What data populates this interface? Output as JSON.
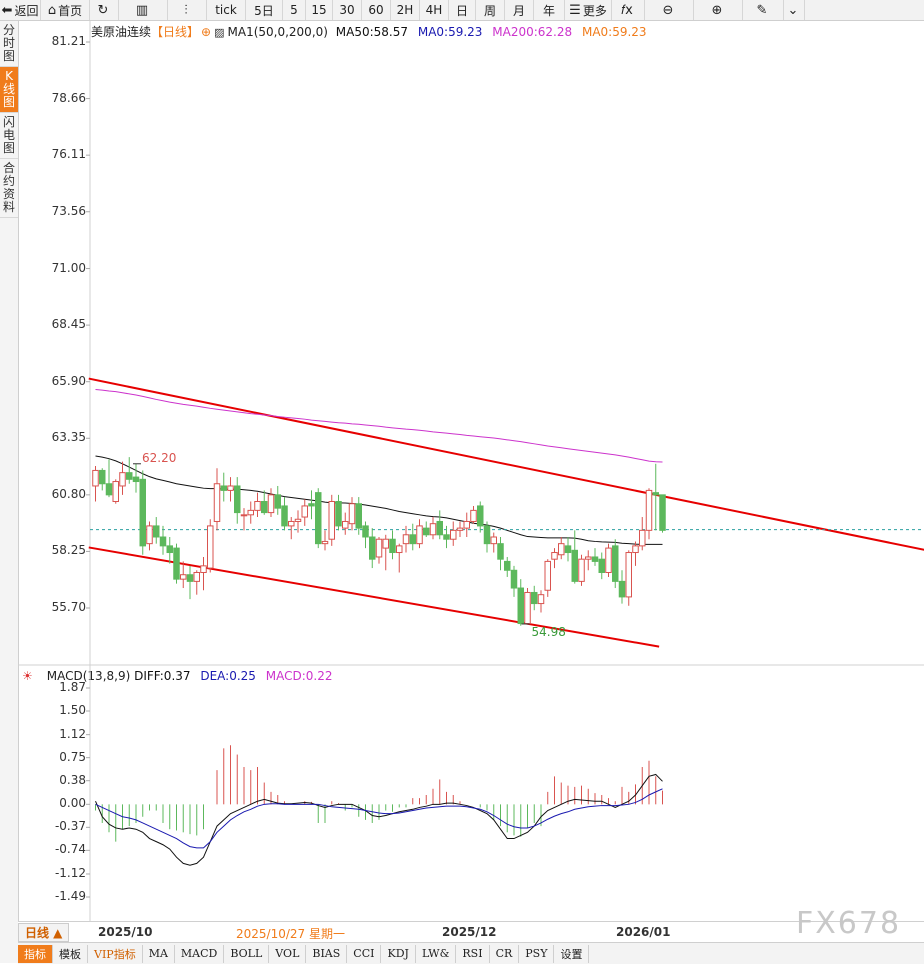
{
  "toolbar": {
    "items": [
      {
        "icon": "back-arrow-icon",
        "glyph": "⬅",
        "label": "返回"
      },
      {
        "icon": "home-icon",
        "glyph": "⌂",
        "label": "首页"
      },
      {
        "icon": "refresh-icon",
        "glyph": "↻",
        "label": ""
      },
      {
        "icon": "bar-chart-icon",
        "glyph": "▥",
        "label": ""
      },
      {
        "icon": "candle-icon",
        "glyph": "⫶",
        "label": ""
      },
      {
        "icon": "",
        "glyph": "",
        "label": "tick"
      },
      {
        "icon": "",
        "glyph": "",
        "label": "5日"
      },
      {
        "icon": "",
        "glyph": "",
        "label": "5"
      },
      {
        "icon": "",
        "glyph": "",
        "label": "15"
      },
      {
        "icon": "",
        "glyph": "",
        "label": "30"
      },
      {
        "icon": "",
        "glyph": "",
        "label": "60"
      },
      {
        "icon": "",
        "glyph": "",
        "label": "2H"
      },
      {
        "icon": "",
        "glyph": "",
        "label": "4H"
      },
      {
        "icon": "",
        "glyph": "",
        "label": "日"
      },
      {
        "icon": "",
        "glyph": "",
        "label": "周"
      },
      {
        "icon": "",
        "glyph": "",
        "label": "月"
      },
      {
        "icon": "",
        "glyph": "",
        "label": "年"
      },
      {
        "icon": "menu-icon",
        "glyph": "☰",
        "label": "更多"
      },
      {
        "icon": "fx-icon",
        "glyph": "𝑓x",
        "label": ""
      },
      {
        "icon": "zoom-out-icon",
        "glyph": "⊖",
        "label": ""
      },
      {
        "icon": "zoom-in-icon",
        "glyph": "⊕",
        "label": ""
      },
      {
        "icon": "draw-pen-icon",
        "glyph": "✎",
        "label": ""
      },
      {
        "icon": "chevron-down-icon",
        "glyph": "⌄",
        "label": ""
      }
    ]
  },
  "sidebar": {
    "items": [
      {
        "label": "分时图",
        "active": false
      },
      {
        "label": "K线图",
        "active": true
      },
      {
        "label": "闪电图",
        "active": false
      },
      {
        "label": "合约资料",
        "active": false
      }
    ]
  },
  "price_header": {
    "symbol": "美原油连续",
    "period": "【日线】",
    "ma_label": "MA1(50,0,200,0)",
    "ma50": "MA50:58.57",
    "ma0a": "MA0:59.23",
    "ma200": "MA200:62.28",
    "ma0b": "MA0:59.23"
  },
  "macd_header": {
    "name": "MACD(13,8,9)",
    "diff": "DIFF:0.37",
    "dea": "DEA:0.25",
    "macd": "MACD:0.22"
  },
  "price_annotations": {
    "high": "62.20",
    "low": "54.98"
  },
  "dates": {
    "d1": "2025/10",
    "d2": "2025/10/27 星期一",
    "d3": "2025/12",
    "d4": "2026/01",
    "period_button": "日线 ▲"
  },
  "bottom_tabs": [
    "指标",
    "模板",
    "VIP指标",
    "MA",
    "MACD",
    "BOLL",
    "VOL",
    "BIAS",
    "CCI",
    "KDJ",
    "LW&",
    "RSI",
    "CR",
    "PSY",
    "设置"
  ],
  "watermark": "FX678",
  "colors": {
    "up": "#d9534f",
    "down": "#5cb85c",
    "ma50": "#111111",
    "ma200": "#cc33cc",
    "trend": "#e60000",
    "diff": "#111111",
    "dea": "#1a1ab0"
  },
  "chart_data": [
    {
      "type": "candlestick",
      "title": "美原油连续 日线",
      "y_ticks": [
        "81.21",
        "78.66",
        "76.11",
        "73.56",
        "71.00",
        "68.45",
        "65.90",
        "63.35",
        "60.80",
        "58.25",
        "55.70"
      ],
      "ylim": [
        53.8,
        81.21
      ],
      "x_labels": [
        "2025/10",
        "2025/12",
        "2026/01"
      ],
      "candles": [
        {
          "o": 61.2,
          "h": 62.1,
          "l": 60.5,
          "c": 61.9
        },
        {
          "o": 61.9,
          "h": 62.0,
          "l": 61.0,
          "c": 61.3
        },
        {
          "o": 61.3,
          "h": 62.4,
          "l": 60.7,
          "c": 60.8
        },
        {
          "o": 60.5,
          "h": 61.5,
          "l": 60.4,
          "c": 61.4
        },
        {
          "o": 61.2,
          "h": 62.3,
          "l": 60.8,
          "c": 61.8
        },
        {
          "o": 61.8,
          "h": 62.5,
          "l": 61.3,
          "c": 61.5
        },
        {
          "o": 61.6,
          "h": 62.2,
          "l": 60.9,
          "c": 61.4
        },
        {
          "o": 61.5,
          "h": 61.9,
          "l": 58.1,
          "c": 58.5
        },
        {
          "o": 58.6,
          "h": 59.6,
          "l": 58.3,
          "c": 59.4
        },
        {
          "o": 59.4,
          "h": 59.8,
          "l": 58.6,
          "c": 58.9
        },
        {
          "o": 58.9,
          "h": 59.4,
          "l": 58.1,
          "c": 58.5
        },
        {
          "o": 58.5,
          "h": 58.9,
          "l": 57.7,
          "c": 58.2
        },
        {
          "o": 58.4,
          "h": 58.6,
          "l": 56.8,
          "c": 57.0
        },
        {
          "o": 57.0,
          "h": 57.8,
          "l": 56.6,
          "c": 57.2
        },
        {
          "o": 57.2,
          "h": 57.6,
          "l": 56.1,
          "c": 56.9
        },
        {
          "o": 56.9,
          "h": 57.4,
          "l": 56.3,
          "c": 57.3
        },
        {
          "o": 57.3,
          "h": 58.0,
          "l": 56.5,
          "c": 57.6
        },
        {
          "o": 57.5,
          "h": 59.7,
          "l": 57.3,
          "c": 59.4
        },
        {
          "o": 59.6,
          "h": 62.0,
          "l": 59.2,
          "c": 61.3
        },
        {
          "o": 61.2,
          "h": 61.8,
          "l": 60.5,
          "c": 61.0
        },
        {
          "o": 61.0,
          "h": 61.6,
          "l": 60.5,
          "c": 61.2
        },
        {
          "o": 61.2,
          "h": 61.6,
          "l": 59.5,
          "c": 60.0
        },
        {
          "o": 59.9,
          "h": 60.2,
          "l": 59.2,
          "c": 59.9
        },
        {
          "o": 59.9,
          "h": 60.5,
          "l": 59.5,
          "c": 60.1
        },
        {
          "o": 60.1,
          "h": 60.9,
          "l": 59.8,
          "c": 60.5
        },
        {
          "o": 60.5,
          "h": 61.0,
          "l": 59.9,
          "c": 60.0
        },
        {
          "o": 60.0,
          "h": 61.1,
          "l": 59.8,
          "c": 60.8
        },
        {
          "o": 60.8,
          "h": 61.2,
          "l": 59.9,
          "c": 60.2
        },
        {
          "o": 60.3,
          "h": 60.7,
          "l": 59.2,
          "c": 59.4
        },
        {
          "o": 59.4,
          "h": 59.8,
          "l": 58.8,
          "c": 59.6
        },
        {
          "o": 59.6,
          "h": 60.1,
          "l": 59.1,
          "c": 59.7
        },
        {
          "o": 59.8,
          "h": 60.6,
          "l": 59.4,
          "c": 60.3
        },
        {
          "o": 60.4,
          "h": 61.0,
          "l": 59.7,
          "c": 60.3
        },
        {
          "o": 60.9,
          "h": 61.1,
          "l": 58.4,
          "c": 58.6
        },
        {
          "o": 58.6,
          "h": 59.2,
          "l": 58.3,
          "c": 58.7
        },
        {
          "o": 58.8,
          "h": 60.8,
          "l": 58.5,
          "c": 60.5
        },
        {
          "o": 60.5,
          "h": 60.8,
          "l": 59.2,
          "c": 59.4
        },
        {
          "o": 59.3,
          "h": 60.0,
          "l": 59.0,
          "c": 59.6
        },
        {
          "o": 59.5,
          "h": 60.7,
          "l": 59.2,
          "c": 60.4
        },
        {
          "o": 60.4,
          "h": 60.7,
          "l": 59.0,
          "c": 59.3
        },
        {
          "o": 59.4,
          "h": 59.6,
          "l": 58.4,
          "c": 58.9
        },
        {
          "o": 58.9,
          "h": 59.3,
          "l": 57.5,
          "c": 57.9
        },
        {
          "o": 58.0,
          "h": 58.9,
          "l": 57.7,
          "c": 58.8
        },
        {
          "o": 58.4,
          "h": 59.0,
          "l": 57.4,
          "c": 58.8
        },
        {
          "o": 58.8,
          "h": 59.2,
          "l": 57.9,
          "c": 58.2
        },
        {
          "o": 58.2,
          "h": 58.6,
          "l": 57.3,
          "c": 58.5
        },
        {
          "o": 58.6,
          "h": 59.4,
          "l": 58.2,
          "c": 59.0
        },
        {
          "o": 59.0,
          "h": 59.5,
          "l": 58.3,
          "c": 58.6
        },
        {
          "o": 58.6,
          "h": 59.7,
          "l": 58.4,
          "c": 59.4
        },
        {
          "o": 59.3,
          "h": 59.6,
          "l": 58.9,
          "c": 59.0
        },
        {
          "o": 59.0,
          "h": 59.8,
          "l": 58.8,
          "c": 59.5
        },
        {
          "o": 59.6,
          "h": 60.1,
          "l": 58.8,
          "c": 59.0
        },
        {
          "o": 59.0,
          "h": 59.4,
          "l": 58.4,
          "c": 58.8
        },
        {
          "o": 58.8,
          "h": 59.6,
          "l": 58.5,
          "c": 59.2
        },
        {
          "o": 59.2,
          "h": 59.6,
          "l": 58.9,
          "c": 59.3
        },
        {
          "o": 59.3,
          "h": 60.0,
          "l": 58.9,
          "c": 59.6
        },
        {
          "o": 59.6,
          "h": 60.3,
          "l": 59.5,
          "c": 60.1
        },
        {
          "o": 60.3,
          "h": 60.5,
          "l": 59.1,
          "c": 59.4
        },
        {
          "o": 59.4,
          "h": 59.6,
          "l": 58.2,
          "c": 58.6
        },
        {
          "o": 58.6,
          "h": 59.1,
          "l": 58.2,
          "c": 58.9
        },
        {
          "o": 58.6,
          "h": 58.9,
          "l": 57.4,
          "c": 57.9
        },
        {
          "o": 57.8,
          "h": 58.0,
          "l": 57.1,
          "c": 57.4
        },
        {
          "o": 57.4,
          "h": 57.6,
          "l": 56.2,
          "c": 56.6
        },
        {
          "o": 56.6,
          "h": 57.0,
          "l": 54.9,
          "c": 55.0
        },
        {
          "o": 55.0,
          "h": 56.6,
          "l": 54.98,
          "c": 56.4
        },
        {
          "o": 56.4,
          "h": 56.7,
          "l": 55.6,
          "c": 55.9
        },
        {
          "o": 55.9,
          "h": 56.5,
          "l": 55.5,
          "c": 56.3
        },
        {
          "o": 56.5,
          "h": 57.9,
          "l": 56.2,
          "c": 57.8
        },
        {
          "o": 57.9,
          "h": 58.4,
          "l": 57.5,
          "c": 58.2
        },
        {
          "o": 58.1,
          "h": 58.9,
          "l": 57.9,
          "c": 58.6
        },
        {
          "o": 58.5,
          "h": 58.9,
          "l": 57.8,
          "c": 58.2
        },
        {
          "o": 58.3,
          "h": 59.2,
          "l": 56.8,
          "c": 56.9
        },
        {
          "o": 56.9,
          "h": 58.1,
          "l": 56.7,
          "c": 57.9
        },
        {
          "o": 57.9,
          "h": 58.3,
          "l": 57.4,
          "c": 58.0
        },
        {
          "o": 58.0,
          "h": 58.4,
          "l": 57.6,
          "c": 57.8
        },
        {
          "o": 57.9,
          "h": 58.2,
          "l": 57.0,
          "c": 57.3
        },
        {
          "o": 57.3,
          "h": 58.6,
          "l": 57.1,
          "c": 58.4
        },
        {
          "o": 58.5,
          "h": 58.8,
          "l": 56.6,
          "c": 56.9
        },
        {
          "o": 56.9,
          "h": 57.4,
          "l": 55.9,
          "c": 56.2
        },
        {
          "o": 56.2,
          "h": 58.3,
          "l": 55.8,
          "c": 58.2
        },
        {
          "o": 58.2,
          "h": 58.7,
          "l": 57.6,
          "c": 58.5
        },
        {
          "o": 58.5,
          "h": 59.8,
          "l": 58.3,
          "c": 59.2
        },
        {
          "o": 59.2,
          "h": 61.1,
          "l": 58.8,
          "c": 61.0
        },
        {
          "o": 60.9,
          "h": 62.2,
          "l": 59.2,
          "c": 60.8
        },
        {
          "o": 60.8,
          "h": 60.8,
          "l": 59.1,
          "c": 59.2
        }
      ],
      "ma50": [
        62.55,
        62.5,
        62.43,
        62.33,
        62.2,
        62.05,
        61.9,
        61.75,
        61.62,
        61.52,
        61.45,
        61.38,
        61.3,
        61.25,
        61.2,
        61.15,
        61.1,
        61.08,
        61.08,
        61.06,
        61.05,
        61.06,
        61.03,
        61.0,
        60.96,
        60.9,
        60.84,
        60.78,
        60.72,
        60.68,
        60.64,
        60.6,
        60.56,
        60.52,
        60.47,
        60.44,
        60.44,
        60.43,
        60.41,
        60.38,
        60.34,
        60.29,
        60.24,
        60.19,
        60.12,
        60.05,
        60.0,
        59.95,
        59.9,
        59.85,
        59.82,
        59.8,
        59.76,
        59.7,
        59.64,
        59.58,
        59.52,
        59.48,
        59.44,
        59.38,
        59.3,
        59.2,
        59.1,
        59.0,
        58.92,
        58.9,
        58.88,
        58.86,
        58.86,
        58.86,
        58.86,
        58.85,
        58.8,
        58.73,
        58.7,
        58.68,
        58.67,
        58.66,
        58.62,
        58.6,
        58.58,
        58.57,
        58.57,
        58.57,
        58.57
      ],
      "ma200": [
        65.55,
        65.52,
        65.48,
        65.45,
        65.4,
        65.35,
        65.3,
        65.24,
        65.17,
        65.1,
        65.04,
        64.98,
        64.93,
        64.88,
        64.84,
        64.8,
        64.75,
        64.7,
        64.66,
        64.62,
        64.58,
        64.54,
        64.5,
        64.46,
        64.43,
        64.4,
        64.37,
        64.33,
        64.3,
        64.27,
        64.24,
        64.21,
        64.17,
        64.14,
        64.11,
        64.08,
        64.05,
        64.03,
        64.0,
        63.98,
        63.95,
        63.92,
        63.89,
        63.85,
        63.82,
        63.79,
        63.76,
        63.74,
        63.71,
        63.68,
        63.64,
        63.61,
        63.58,
        63.55,
        63.52,
        63.48,
        63.45,
        63.42,
        63.39,
        63.36,
        63.32,
        63.28,
        63.24,
        63.2,
        63.15,
        63.1,
        63.05,
        63.0,
        62.96,
        62.92,
        62.88,
        62.84,
        62.8,
        62.76,
        62.72,
        62.68,
        62.64,
        62.6,
        62.55,
        62.5,
        62.44,
        62.38,
        62.32,
        62.29,
        62.28
      ],
      "current_price": 59.23,
      "trendlines": [
        {
          "from": {
            "i": -1,
            "y": 66.04
          },
          "to": {
            "i": 156,
            "y": 56.25
          }
        },
        {
          "from": {
            "i": -1,
            "y": 58.43
          },
          "to": {
            "i": 83.5,
            "y": 53.96
          }
        }
      ]
    },
    {
      "type": "bar+line",
      "title": "MACD(13,8,9)",
      "y_ticks": [
        "1.87",
        "1.50",
        "1.12",
        "0.75",
        "0.38",
        "0.00",
        "-0.37",
        "-0.74",
        "-1.12",
        "-1.49"
      ],
      "ylim": [
        -1.8,
        1.87
      ],
      "macd": [
        -0.1,
        -0.3,
        -0.45,
        -0.6,
        -0.4,
        -0.35,
        -0.3,
        -0.2,
        -0.1,
        -0.1,
        -0.3,
        -0.4,
        -0.42,
        -0.45,
        -0.48,
        -0.5,
        -0.4,
        0.0,
        0.55,
        0.9,
        0.95,
        0.8,
        0.6,
        0.55,
        0.6,
        0.35,
        0.2,
        0.15,
        0.05,
        0.0,
        0.0,
        0.05,
        0.04,
        -0.3,
        -0.3,
        0.05,
        0.02,
        -0.1,
        -0.05,
        -0.2,
        -0.25,
        -0.3,
        -0.25,
        -0.1,
        -0.12,
        -0.05,
        -0.05,
        0.1,
        0.1,
        0.15,
        0.25,
        0.4,
        0.2,
        0.15,
        0.05,
        0.0,
        0.0,
        -0.05,
        -0.1,
        -0.25,
        -0.35,
        -0.45,
        -0.5,
        -0.52,
        -0.38,
        -0.3,
        -0.35,
        0.2,
        0.45,
        0.35,
        0.3,
        0.28,
        0.3,
        0.25,
        0.18,
        0.15,
        0.1,
        0.05,
        0.28,
        0.2,
        0.32,
        0.6,
        0.7,
        0.45,
        0.22
      ],
      "diff": [
        0.05,
        -0.2,
        -0.32,
        -0.38,
        -0.4,
        -0.38,
        -0.4,
        -0.45,
        -0.55,
        -0.6,
        -0.65,
        -0.72,
        -0.85,
        -0.95,
        -0.98,
        -0.95,
        -0.85,
        -0.6,
        -0.35,
        -0.25,
        -0.15,
        -0.1,
        -0.05,
        0.0,
        0.05,
        0.08,
        0.05,
        0.02,
        0.01,
        0.01,
        0.02,
        0.03,
        0.02,
        -0.02,
        -0.05,
        -0.02,
        0.0,
        0.0,
        0.0,
        -0.05,
        -0.1,
        -0.18,
        -0.2,
        -0.18,
        -0.15,
        -0.12,
        -0.1,
        -0.08,
        -0.05,
        -0.03,
        0.0,
        0.0,
        0.02,
        0.02,
        0.0,
        -0.02,
        -0.05,
        -0.1,
        -0.15,
        -0.25,
        -0.4,
        -0.55,
        -0.55,
        -0.5,
        -0.45,
        -0.35,
        -0.2,
        -0.1,
        -0.05,
        0.0,
        0.05,
        0.08,
        0.07,
        0.06,
        0.05,
        0.05,
        0.0,
        -0.05,
        0.0,
        0.05,
        0.15,
        0.3,
        0.45,
        0.48,
        0.37
      ],
      "dea": [
        0.0,
        -0.05,
        -0.1,
        -0.15,
        -0.2,
        -0.22,
        -0.25,
        -0.3,
        -0.35,
        -0.4,
        -0.45,
        -0.5,
        -0.55,
        -0.62,
        -0.68,
        -0.7,
        -0.7,
        -0.6,
        -0.45,
        -0.35,
        -0.25,
        -0.18,
        -0.12,
        -0.08,
        -0.03,
        0.0,
        0.01,
        0.01,
        0.0,
        0.0,
        0.0,
        0.0,
        0.0,
        0.0,
        -0.02,
        -0.04,
        -0.05,
        -0.06,
        -0.07,
        -0.08,
        -0.1,
        -0.12,
        -0.14,
        -0.15,
        -0.15,
        -0.14,
        -0.12,
        -0.1,
        -0.08,
        -0.06,
        -0.05,
        -0.04,
        -0.03,
        -0.03,
        -0.03,
        -0.04,
        -0.06,
        -0.08,
        -0.12,
        -0.18,
        -0.25,
        -0.32,
        -0.36,
        -0.38,
        -0.38,
        -0.35,
        -0.3,
        -0.24,
        -0.19,
        -0.15,
        -0.12,
        -0.08,
        -0.06,
        -0.04,
        -0.03,
        -0.02,
        -0.02,
        -0.02,
        -0.01,
        0.0,
        0.03,
        0.08,
        0.15,
        0.2,
        0.25
      ]
    }
  ]
}
